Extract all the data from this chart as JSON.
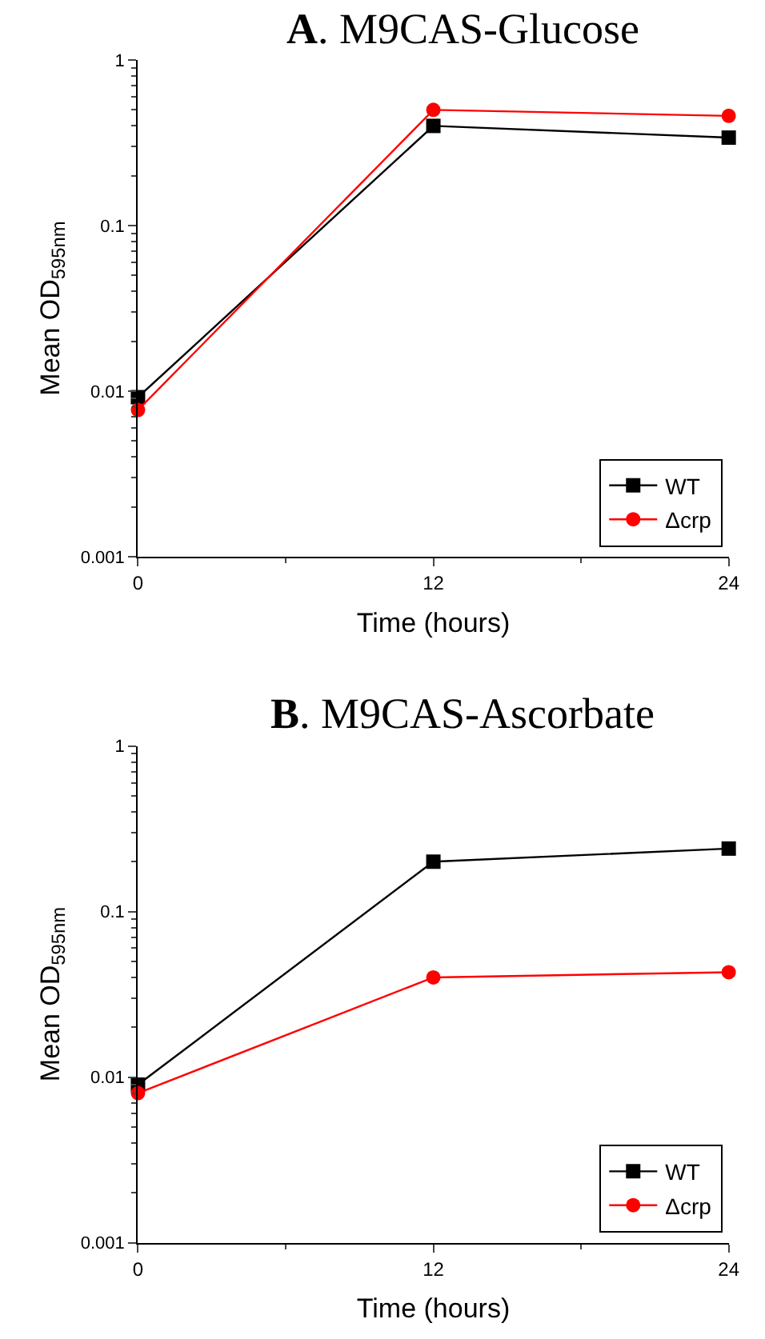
{
  "chart_data": [
    {
      "type": "line",
      "title": "A. M9CAS-Glucose",
      "xlabel": "Time (hours)",
      "ylabel": "Mean OD$_{595nm}$",
      "x": [
        0,
        12,
        24
      ],
      "xlim": [
        0,
        24
      ],
      "xticks": [
        0,
        12,
        24
      ],
      "ylim": [
        0.001,
        1
      ],
      "yticks": [
        0.001,
        0.01,
        0.1,
        1
      ],
      "log": "y",
      "legend": "bottom right",
      "line_style": "solid",
      "series": [
        {
          "name": "WT",
          "color": "#000000",
          "marker": "square",
          "values": [
            0.0092,
            0.4,
            0.34
          ]
        },
        {
          "name": "Δcrp",
          "color": "#ff0000",
          "marker": "circle",
          "values": [
            0.0077,
            0.5,
            0.46
          ]
        }
      ]
    },
    {
      "type": "line",
      "title": "B. M9CAS-Ascorbate",
      "xlabel": "Time (hours)",
      "ylabel": "Mean OD$_{595nm}$",
      "x": [
        0,
        12,
        24
      ],
      "xlim": [
        0,
        24
      ],
      "xticks": [
        0,
        12,
        24
      ],
      "ylim": [
        0.001,
        1
      ],
      "yticks": [
        0.001,
        0.01,
        0.1,
        1
      ],
      "log": "y",
      "legend": "bottom right",
      "line_style": "solid",
      "series": [
        {
          "name": "WT",
          "color": "#000000",
          "marker": "square",
          "values": [
            0.009,
            0.2,
            0.24
          ]
        },
        {
          "name": "Δcrp",
          "color": "#ff0000",
          "marker": "circle",
          "values": [
            0.008,
            0.04,
            0.043
          ]
        }
      ]
    }
  ]
}
